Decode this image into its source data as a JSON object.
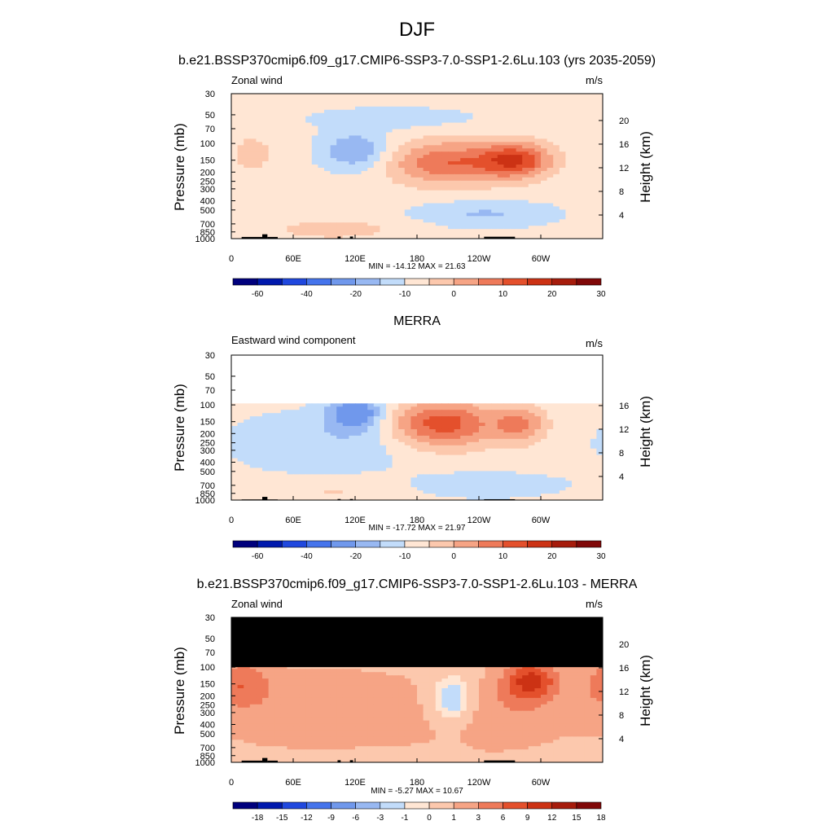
{
  "figure": {
    "season": "DJF"
  },
  "colors": {
    "model_scale": [
      "#00007d",
      "#0019ad",
      "#2048de",
      "#4574ec",
      "#7098ec",
      "#98b8f2",
      "#c2dcfa",
      "#ffe6d4",
      "#fcc8ad",
      "#f6a485",
      "#ee7a5a",
      "#e4502c",
      "#cc3214",
      "#a61c0c",
      "#800808"
    ],
    "diff_scale": [
      "#00007d",
      "#0019ad",
      "#2048de",
      "#4574ec",
      "#7098ec",
      "#98b8f2",
      "#c2dcfa",
      "#ffe6d4",
      "#fcc8ad",
      "#f6a485",
      "#ee7a5a",
      "#e4502c",
      "#cc3214",
      "#a61c0c",
      "#800808"
    ],
    "topography": "#000000",
    "missing": "#000000"
  },
  "chart_data": [
    {
      "type": "heatmap",
      "title": "b.e21.BSSP370cmip6.f09_g17.CMIP6-SSP3-7.0-SSP1-2.6Lu.103 (yrs 2035-2059)",
      "left_label": "Zonal wind",
      "right_label": "m/s",
      "ylabel": "Pressure (mb)",
      "ylabel_right": "Height (km)",
      "x_ticks": [
        "0",
        "60E",
        "120E",
        "180",
        "120W",
        "60W"
      ],
      "y_ticks": [
        "30",
        "50",
        "70",
        "100",
        "150",
        "200",
        "250",
        "300",
        "400",
        "500",
        "700",
        "850",
        "1000"
      ],
      "height_ticks": [
        "4",
        "8",
        "12",
        "16",
        "20"
      ],
      "stats": "MIN = -14.12  MAX =  21.63",
      "min": -14.12,
      "max": 21.63,
      "colorbar_labels": [
        "-60",
        "-40",
        "-20",
        "-10",
        "0",
        "10",
        "20",
        "30"
      ],
      "top_pressure": 30,
      "features": [
        {
          "lon": 210,
          "p": 160,
          "value": 18,
          "wx": 40,
          "wy": 0.38
        },
        {
          "lon": 277,
          "p": 150,
          "value": 21.6,
          "wx": 24,
          "wy": 0.3
        },
        {
          "lon": 120,
          "p": 120,
          "value": -12,
          "wx": 22,
          "wy": 0.32
        },
        {
          "lon": 20,
          "p": 130,
          "value": 6,
          "wx": 15,
          "wy": 0.35
        },
        {
          "lon": 245,
          "p": 550,
          "value": -7,
          "wx": 45,
          "wy": 0.22
        },
        {
          "lon": 100,
          "p": 800,
          "value": 6,
          "wx": 45,
          "wy": 0.18
        },
        {
          "lon": 160,
          "p": 55,
          "value": -4,
          "wx": 60,
          "wy": 0.2
        }
      ]
    },
    {
      "type": "heatmap",
      "title": "MERRA",
      "left_label": "Eastward wind component",
      "right_label": "m/s",
      "ylabel": "Pressure (mb)",
      "ylabel_right": "Height (km)",
      "x_ticks": [
        "0",
        "60E",
        "120E",
        "180",
        "120W",
        "60W"
      ],
      "y_ticks": [
        "30",
        "50",
        "70",
        "100",
        "150",
        "200",
        "250",
        "300",
        "400",
        "500",
        "700",
        "850",
        "1000"
      ],
      "height_ticks": [
        "4",
        "8",
        "12",
        "16"
      ],
      "stats": "MIN = -17.72  MAX =  21.97",
      "min": -17.72,
      "max": 21.97,
      "colorbar_labels": [
        "-60",
        "-40",
        "-20",
        "-10",
        "0",
        "10",
        "20",
        "30"
      ],
      "top_pressure": 100,
      "missing_fill": "white",
      "features": [
        {
          "lon": 205,
          "p": 160,
          "value": 22,
          "wx": 35,
          "wy": 0.4
        },
        {
          "lon": 280,
          "p": 160,
          "value": 14,
          "wx": 18,
          "wy": 0.32
        },
        {
          "lon": 120,
          "p": 120,
          "value": -17.7,
          "wx": 18,
          "wy": 0.28
        },
        {
          "lon": 90,
          "p": 250,
          "value": -6,
          "wx": 60,
          "wy": 0.5
        },
        {
          "lon": 245,
          "p": 700,
          "value": -6,
          "wx": 50,
          "wy": 0.2
        },
        {
          "lon": 100,
          "p": 800,
          "value": 4,
          "wx": 50,
          "wy": 0.2
        }
      ]
    },
    {
      "type": "heatmap",
      "title": "b.e21.BSSP370cmip6.f09_g17.CMIP6-SSP3-7.0-SSP1-2.6Lu.103 - MERRA",
      "left_label": "Zonal wind",
      "right_label": "m/s",
      "ylabel": "Pressure (mb)",
      "ylabel_right": "Height (km)",
      "x_ticks": [
        "0",
        "60E",
        "120E",
        "180",
        "120W",
        "60W"
      ],
      "y_ticks": [
        "30",
        "50",
        "70",
        "100",
        "150",
        "200",
        "250",
        "300",
        "400",
        "500",
        "700",
        "850",
        "1000"
      ],
      "height_ticks": [
        "4",
        "8",
        "12",
        "16",
        "20"
      ],
      "stats": "MIN = -5.27  MAX =  10.67",
      "min": -5.27,
      "max": 10.67,
      "colorbar_labels": [
        "-18",
        "-15",
        "-12",
        "-9",
        "-6",
        "-3",
        "-1",
        "0",
        "1",
        "3",
        "6",
        "9",
        "12",
        "15",
        "18"
      ],
      "top_pressure": 100,
      "missing_fill": "black",
      "features": [
        {
          "lon": 215,
          "p": 230,
          "value": -5.3,
          "wx": 18,
          "wy": 0.45
        },
        {
          "lon": 290,
          "p": 140,
          "value": 10.7,
          "wx": 18,
          "wy": 0.35
        },
        {
          "lon": 10,
          "p": 150,
          "value": 6,
          "wx": 20,
          "wy": 0.4
        },
        {
          "lon": 100,
          "p": 300,
          "value": 3,
          "wx": 80,
          "wy": 0.7
        },
        {
          "lon": 260,
          "p": 300,
          "value": 3,
          "wx": 40,
          "wy": 0.6
        },
        {
          "lon": 120,
          "p": 800,
          "value": -0.5,
          "wx": 60,
          "wy": 0.18
        }
      ]
    }
  ]
}
